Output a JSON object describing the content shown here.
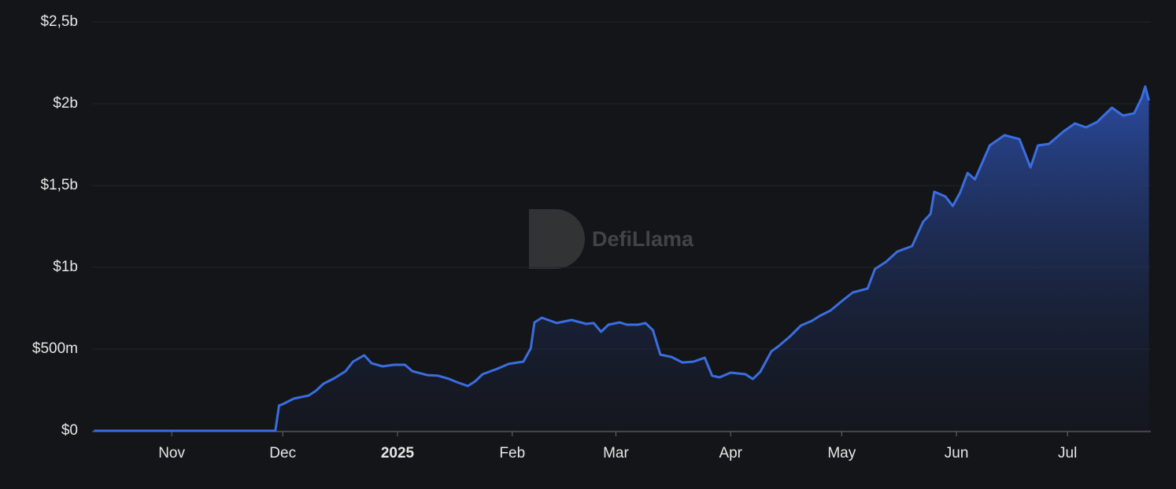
{
  "chart_data": {
    "type": "area",
    "watermark": "DefiLlama",
    "color": "#3a6ee0",
    "x": [
      -21,
      28,
      29,
      30,
      33,
      37,
      39,
      41,
      44,
      47,
      49,
      52,
      54,
      57,
      60,
      63,
      65,
      69,
      72,
      75,
      77,
      80,
      82,
      84,
      88,
      91,
      95,
      97,
      98,
      100,
      104,
      108,
      112,
      114,
      116,
      118,
      121,
      123,
      126,
      128,
      130,
      132,
      135,
      138,
      141,
      144,
      146,
      148,
      151,
      155,
      157,
      159,
      162,
      164,
      167,
      170,
      173,
      175,
      178,
      181,
      184,
      188,
      190,
      193,
      196,
      200,
      203,
      205,
      206,
      209,
      211,
      213,
      215,
      217,
      221,
      225,
      229,
      232,
      234,
      237,
      241,
      244,
      247,
      250,
      254,
      257,
      260,
      262,
      263,
      264
    ],
    "values": [
      0,
      0,
      155000000,
      163000000,
      197000000,
      216000000,
      245000000,
      288000000,
      322000000,
      365000000,
      423000000,
      462000000,
      413000000,
      394000000,
      404000000,
      404000000,
      365000000,
      341000000,
      337000000,
      317000000,
      298000000,
      274000000,
      303000000,
      346000000,
      380000000,
      409000000,
      423000000,
      505000000,
      663000000,
      692000000,
      659000000,
      678000000,
      654000000,
      659000000,
      606000000,
      649000000,
      663000000,
      649000000,
      649000000,
      659000000,
      615000000,
      466000000,
      452000000,
      418000000,
      423000000,
      447000000,
      337000000,
      327000000,
      356000000,
      346000000,
      317000000,
      361000000,
      486000000,
      519000000,
      577000000,
      644000000,
      673000000,
      702000000,
      736000000,
      793000000,
      846000000,
      870000000,
      990000000,
      1034000000,
      1096000000,
      1130000000,
      1279000000,
      1327000000,
      1462000000,
      1433000000,
      1375000000,
      1457000000,
      1577000000,
      1538000000,
      1745000000,
      1808000000,
      1784000000,
      1611000000,
      1745000000,
      1755000000,
      1832000000,
      1880000000,
      1856000000,
      1889000000,
      1976000000,
      1928000000,
      1942000000,
      2034000000,
      2106000000,
      2019000000
    ],
    "xlim": [
      -21.5,
      264.5
    ],
    "xticks": [
      {
        "value": 0,
        "label": "Nov"
      },
      {
        "value": 30,
        "label": "Dec"
      },
      {
        "value": 61,
        "label": "2025",
        "bold": true
      },
      {
        "value": 92,
        "label": "Feb"
      },
      {
        "value": 120,
        "label": "Mar"
      },
      {
        "value": 151,
        "label": "Apr"
      },
      {
        "value": 181,
        "label": "May"
      },
      {
        "value": 212,
        "label": "Jun"
      },
      {
        "value": 242,
        "label": "Jul"
      }
    ],
    "ylim": [
      0,
      2500000000
    ],
    "yticks": [
      {
        "value": 0,
        "label": "$0"
      },
      {
        "value": 500000000,
        "label": "$500m"
      },
      {
        "value": 1000000000,
        "label": "$1b"
      },
      {
        "value": 1500000000,
        "label": "$1,5b"
      },
      {
        "value": 2000000000,
        "label": "$2b"
      },
      {
        "value": 2500000000,
        "label": "$2,5b"
      }
    ],
    "grid": true
  }
}
